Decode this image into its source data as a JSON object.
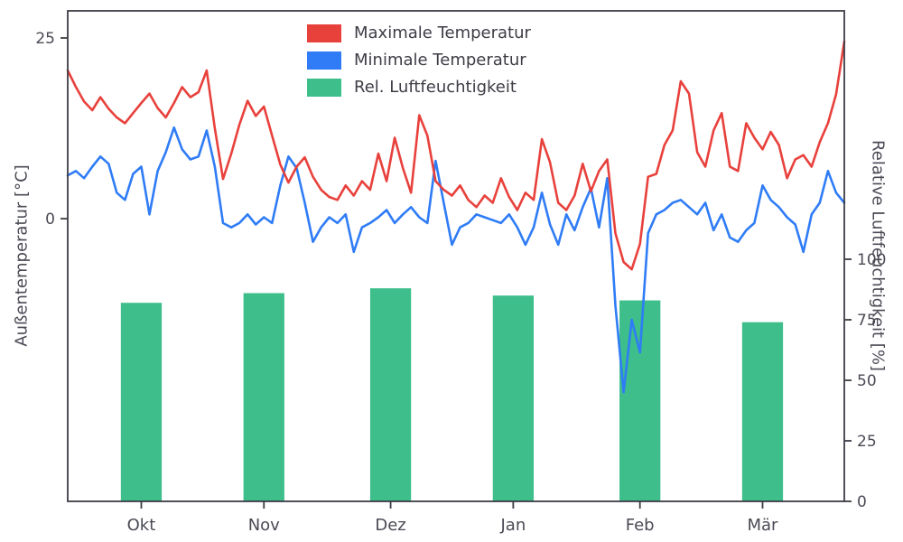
{
  "chart_data": {
    "type": "line+bar",
    "title": "",
    "x_unit": "day",
    "x_range": [
      0,
      190
    ],
    "month_ticks": [
      {
        "label": "Okt",
        "day": 18
      },
      {
        "label": "Nov",
        "day": 48
      },
      {
        "label": "Dez",
        "day": 79
      },
      {
        "label": "Jan",
        "day": 109
      },
      {
        "label": "Feb",
        "day": 140
      },
      {
        "label": "Mär",
        "day": 170
      }
    ],
    "left_axis": {
      "label": "Außentemperatur [°C]",
      "ticks": [
        25,
        0
      ],
      "range": [
        -39.1,
        28.75
      ]
    },
    "right_axis": {
      "label": "Relative Luftfeuchtigkeit [%]",
      "ticks": [
        100,
        75,
        50,
        25,
        0
      ],
      "range": [
        0,
        202.6
      ]
    },
    "grid": false,
    "legend": {
      "position": "upper-center-left",
      "frame": false,
      "entries": [
        {
          "label": "Maximale Temperatur",
          "color": "#e8413c"
        },
        {
          "label": "Minimale Temperatur",
          "color": "#2f7cf6"
        },
        {
          "label": "Rel. Luftfeuchtigkeit",
          "color": "#3dbe8b"
        }
      ]
    },
    "series": [
      {
        "name": "Rel. Luftfeuchtigkeit",
        "type": "bar",
        "axis": "right",
        "color": "#3dbe8b",
        "bar_width_days": 10,
        "categories": [
          "Okt",
          "Nov",
          "Dez",
          "Jan",
          "Feb",
          "Mär"
        ],
        "values": [
          82,
          86,
          88,
          85,
          83,
          74
        ]
      },
      {
        "name": "Minimale Temperatur",
        "type": "line",
        "axis": "left",
        "color": "#2f7cf6",
        "x": {
          "start": 0,
          "step": 2
        },
        "values": [
          6.0,
          6.6,
          5.6,
          7.2,
          8.6,
          7.6,
          3.6,
          2.6,
          6.2,
          7.2,
          0.6,
          6.6,
          9.2,
          12.6,
          9.6,
          8.2,
          8.6,
          12.2,
          7.2,
          -0.6,
          -1.2,
          -0.6,
          0.6,
          -0.8,
          0.2,
          -0.6,
          4.6,
          8.6,
          7.0,
          2.2,
          -3.2,
          -1.2,
          0.2,
          -0.6,
          0.6,
          -4.6,
          -1.2,
          -0.6,
          0.2,
          1.2,
          -0.6,
          0.6,
          1.6,
          0.2,
          -0.6,
          8.0,
          2.2,
          -3.6,
          -1.2,
          -0.6,
          0.6,
          0.2,
          -0.2,
          -0.6,
          0.6,
          -1.2,
          -3.6,
          -1.2,
          3.6,
          -0.8,
          -3.6,
          0.6,
          -1.6,
          1.6,
          4.2,
          -1.2,
          5.6,
          -12.0,
          -24.0,
          -14.0,
          -18.5,
          -2.0,
          0.6,
          1.2,
          2.2,
          2.6,
          1.6,
          0.6,
          2.2,
          -1.6,
          0.6,
          -2.6,
          -3.2,
          -1.6,
          -0.6,
          4.6,
          2.6,
          1.6,
          0.2,
          -0.8,
          -4.6,
          0.6,
          2.2,
          6.6,
          3.6,
          2.2
        ]
      },
      {
        "name": "Maximale Temperatur",
        "type": "line",
        "axis": "left",
        "color": "#e8413c",
        "x": {
          "start": 0,
          "step": 2
        },
        "values": [
          20.5,
          18.2,
          16.2,
          15.0,
          16.8,
          15.2,
          14.0,
          13.2,
          14.6,
          16.0,
          17.3,
          15.3,
          14.0,
          16.0,
          18.2,
          16.8,
          17.5,
          20.5,
          12.5,
          5.5,
          9.0,
          13.0,
          16.3,
          14.2,
          15.5,
          11.5,
          7.5,
          5.0,
          7.2,
          8.5,
          5.8,
          4.0,
          3.0,
          2.6,
          4.6,
          3.2,
          5.2,
          4.0,
          9.0,
          5.2,
          11.2,
          7.0,
          3.6,
          14.3,
          11.5,
          5.2,
          4.0,
          3.2,
          4.6,
          2.6,
          1.6,
          3.2,
          2.2,
          5.6,
          3.0,
          1.2,
          3.6,
          2.6,
          11.0,
          7.8,
          2.2,
          1.2,
          3.2,
          7.6,
          3.8,
          6.6,
          8.2,
          -2.0,
          -6.0,
          -7.0,
          -3.5,
          5.8,
          6.2,
          10.2,
          12.2,
          19.0,
          17.3,
          9.2,
          7.2,
          12.2,
          14.6,
          7.2,
          6.6,
          13.2,
          11.2,
          9.6,
          12.0,
          10.2,
          5.6,
          8.2,
          8.8,
          7.2,
          10.6,
          13.2,
          17.2,
          24.5
        ]
      }
    ],
    "style": {
      "spine_color": "#3c3c46",
      "tick_color": "#4a4a55",
      "background": "#ffffff"
    }
  }
}
